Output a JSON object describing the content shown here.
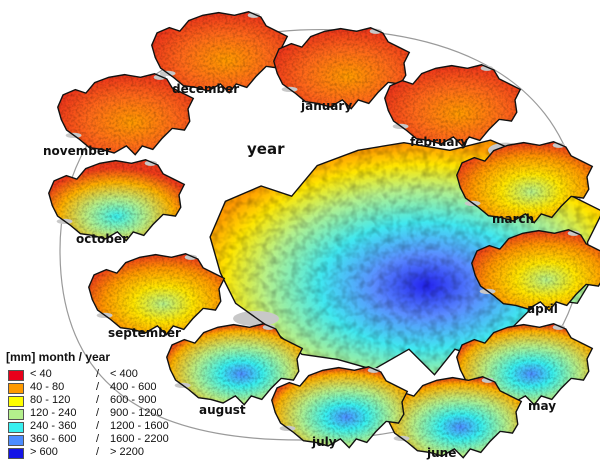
{
  "map_data": {
    "central_label": "year",
    "months": [
      {
        "key": "january",
        "label": "january"
      },
      {
        "key": "february",
        "label": "february"
      },
      {
        "key": "march",
        "label": "march"
      },
      {
        "key": "april",
        "label": "april"
      },
      {
        "key": "may",
        "label": "may"
      },
      {
        "key": "june",
        "label": "june"
      },
      {
        "key": "july",
        "label": "july"
      },
      {
        "key": "august",
        "label": "august"
      },
      {
        "key": "september",
        "label": "september"
      },
      {
        "key": "october",
        "label": "october"
      },
      {
        "key": "november",
        "label": "november"
      },
      {
        "key": "december",
        "label": "december"
      }
    ]
  },
  "legend": {
    "title": "[mm] month / year",
    "separator": "/",
    "rows": [
      {
        "month": "< 40",
        "year": "< 400",
        "color": "#e8001a"
      },
      {
        "month": "40 - 80",
        "year": "400 - 600",
        "color": "#ff9a00"
      },
      {
        "month": "80 - 120",
        "year": "600 - 900",
        "color": "#ffff00"
      },
      {
        "month": "120 - 240",
        "year": "900 - 1200",
        "color": "#b4f08c"
      },
      {
        "month": "240 - 360",
        "year": "1200 - 1600",
        "color": "#38f0f0"
      },
      {
        "month": "360 - 600",
        "year": "1600 - 2200",
        "color": "#4c8cff"
      },
      {
        "month": "> 600",
        "year": "> 2200",
        "color": "#1414e6"
      }
    ]
  }
}
